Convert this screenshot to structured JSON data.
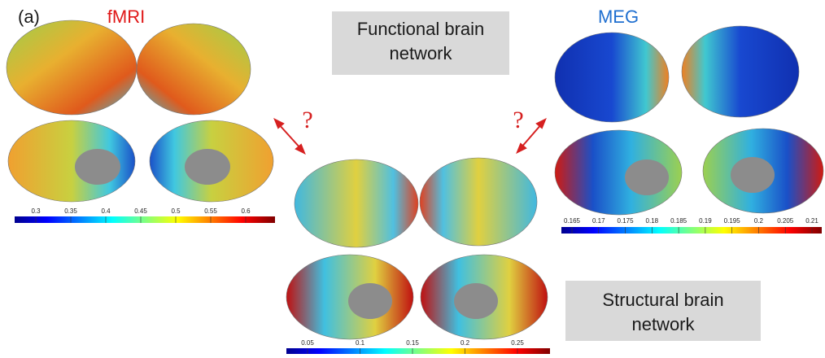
{
  "panel_label": "(a)",
  "functional": {
    "title_lines": [
      "Functional brain",
      "network"
    ]
  },
  "structural": {
    "title_lines": [
      "Structural brain",
      "network"
    ]
  },
  "fmri": {
    "label": "fMRI",
    "colorbar_labels": [
      "0.3",
      "0.35",
      "0.4",
      "0.45",
      "0.5",
      "0.55",
      "0.6"
    ]
  },
  "meg": {
    "label": "MEG",
    "colorbar_labels": [
      "0.165",
      "0.17",
      "0.175",
      "0.18",
      "0.185",
      "0.19",
      "0.195",
      "0.2",
      "0.205",
      "0.21"
    ]
  },
  "structural_colorbar": {
    "colorbar_labels": [
      "0.05",
      "0.1",
      "0.15",
      "0.2",
      "0.25"
    ]
  },
  "question_marks": [
    "?",
    "?"
  ]
}
